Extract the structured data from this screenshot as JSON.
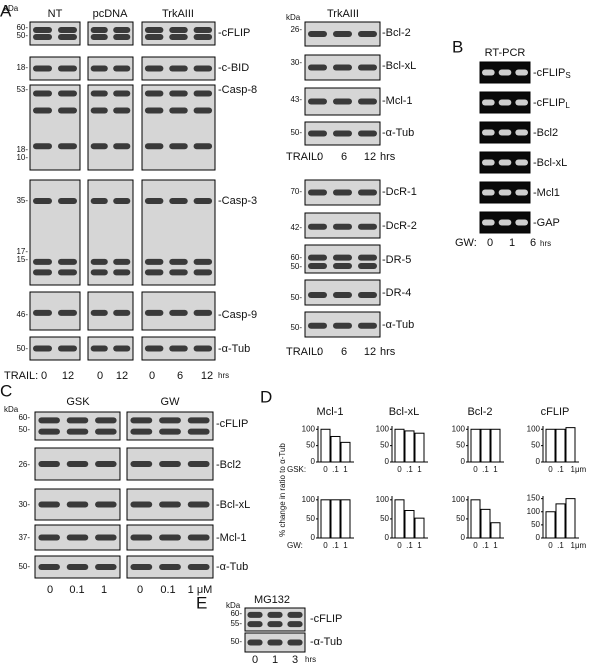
{
  "panel_a": {
    "letter": "A",
    "kda": "kDa",
    "conditions": [
      "NT",
      "pcDNA",
      "TrkAIII"
    ],
    "blots": [
      {
        "protein": "-cFLIP",
        "mw": [
          "60-",
          "50-"
        ]
      },
      {
        "protein": "-c-BID",
        "mw": [
          "18-"
        ]
      },
      {
        "protein": "-Casp-8",
        "mw": [
          "53-",
          "18-",
          "10-"
        ]
      },
      {
        "protein": "-Casp-3",
        "mw": [
          "35-",
          "17-",
          "15-"
        ]
      },
      {
        "protein": "-Casp-9",
        "mw": [
          "46-"
        ]
      },
      {
        "protein": "-α-Tub",
        "mw": [
          "50-"
        ]
      }
    ],
    "treatment": "TRAIL:",
    "timepoints": [
      "0",
      "12",
      "0",
      "12",
      "0",
      "6",
      "12"
    ],
    "unit": "hrs"
  },
  "panel_a_right": {
    "condition": "TrkAIII",
    "kda": "kDa",
    "blots_top": [
      {
        "protein": "-Bcl-2",
        "mw": [
          "26-"
        ]
      },
      {
        "protein": "-Bcl-xL",
        "mw": [
          "30-"
        ]
      },
      {
        "protein": "-Mcl-1",
        "mw": [
          "43-"
        ]
      },
      {
        "protein": "-α-Tub",
        "mw": [
          "50-"
        ]
      }
    ],
    "treatment_top": "TRAIL:",
    "timepoints_top": [
      "0",
      "6",
      "12"
    ],
    "unit_top": "hrs",
    "blots_bottom": [
      {
        "protein": "-DcR-1",
        "mw": [
          "70-"
        ]
      },
      {
        "protein": "-DcR-2",
        "mw": [
          "42-"
        ]
      },
      {
        "protein": "-DR-5",
        "mw": [
          "60-",
          "50-"
        ]
      },
      {
        "protein": "-DR-4",
        "mw": [
          "50-"
        ]
      },
      {
        "protein": "-α-Tub",
        "mw": [
          "50-"
        ]
      }
    ],
    "treatment_bottom": "TRAIL:",
    "timepoints_bottom": [
      "0",
      "6",
      "12"
    ],
    "unit_bottom": "hrs"
  },
  "panel_b": {
    "letter": "B",
    "title": "RT-PCR",
    "genes": [
      {
        "label": "-cFLIP",
        "subscript": "S"
      },
      {
        "label": "-cFLIP",
        "subscript": "L"
      },
      {
        "label": "-Bcl2"
      },
      {
        "label": "-Bcl-xL"
      },
      {
        "label": "-Mcl1"
      },
      {
        "label": "-GAP"
      }
    ],
    "treatment": "GW:",
    "timepoints": [
      "0",
      "1",
      "6"
    ],
    "unit": "hrs"
  },
  "panel_c": {
    "letter": "C",
    "groups": [
      "GSK",
      "GW"
    ],
    "kda": "kDa",
    "blots": [
      {
        "protein": "-cFLIP",
        "mw": [
          "60-",
          "50-"
        ]
      },
      {
        "protein": "-Bcl2",
        "mw": [
          "26-"
        ]
      },
      {
        "protein": "-Bcl-xL",
        "mw": [
          "30-"
        ]
      },
      {
        "protein": "-Mcl-1",
        "mw": [
          "37-"
        ]
      },
      {
        "protein": "-α-Tub",
        "mw": [
          "50-"
        ]
      }
    ],
    "doses": [
      "0",
      "0.1",
      "1",
      "0",
      "0.1",
      "1 μM"
    ]
  },
  "panel_d": {
    "letter": "D",
    "y_label": "% change in ratio to α-Tub",
    "row_labels": [
      "GSK:",
      "GW:"
    ]
  },
  "chart_data": [
    {
      "type": "bar",
      "title": "Mcl-1",
      "categories": [
        "0",
        ".1",
        "1"
      ],
      "values": [
        100,
        78,
        60
      ],
      "ylim": [
        0,
        110
      ],
      "yticks": [
        0,
        50,
        100
      ]
    },
    {
      "type": "bar",
      "title": "Bcl-xL",
      "categories": [
        "0",
        ".1",
        "1"
      ],
      "values": [
        100,
        95,
        88
      ],
      "ylim": [
        0,
        110
      ],
      "yticks": [
        0,
        50,
        100
      ]
    },
    {
      "type": "bar",
      "title": "Bcl-2",
      "categories": [
        "0",
        ".1",
        "1"
      ],
      "values": [
        100,
        100,
        100
      ],
      "ylim": [
        0,
        110
      ],
      "yticks": [
        0,
        50,
        100
      ]
    },
    {
      "type": "bar",
      "title": "cFLIP",
      "categories": [
        "0",
        ".1",
        "1μm"
      ],
      "values": [
        100,
        100,
        105
      ],
      "ylim": [
        0,
        110
      ],
      "yticks": [
        0,
        50,
        100
      ]
    },
    {
      "type": "bar",
      "categories": [
        "0",
        ".1",
        "1"
      ],
      "values": [
        100,
        100,
        100
      ],
      "ylim": [
        0,
        110
      ],
      "yticks": [
        0,
        50,
        100
      ]
    },
    {
      "type": "bar",
      "categories": [
        "0",
        ".1",
        "1"
      ],
      "values": [
        100,
        72,
        52
      ],
      "ylim": [
        0,
        110
      ],
      "yticks": [
        0,
        50,
        100
      ]
    },
    {
      "type": "bar",
      "categories": [
        "0",
        ".1",
        "1"
      ],
      "values": [
        100,
        75,
        40
      ],
      "ylim": [
        0,
        110
      ],
      "yticks": [
        0,
        50,
        100
      ]
    },
    {
      "type": "bar",
      "categories": [
        "0",
        ".1",
        "1μm"
      ],
      "values": [
        100,
        130,
        150
      ],
      "ylim": [
        0,
        160
      ],
      "yticks": [
        0,
        50,
        100,
        150
      ]
    }
  ],
  "panel_e": {
    "letter": "E",
    "title": "MG132",
    "kda": "kDa",
    "blots": [
      {
        "protein": "-cFLIP",
        "mw": [
          "60-",
          "55-"
        ]
      },
      {
        "protein": "-α-Tub",
        "mw": [
          "50-"
        ]
      }
    ],
    "timepoints": [
      "0",
      "1",
      "3"
    ],
    "unit": "hrs"
  }
}
